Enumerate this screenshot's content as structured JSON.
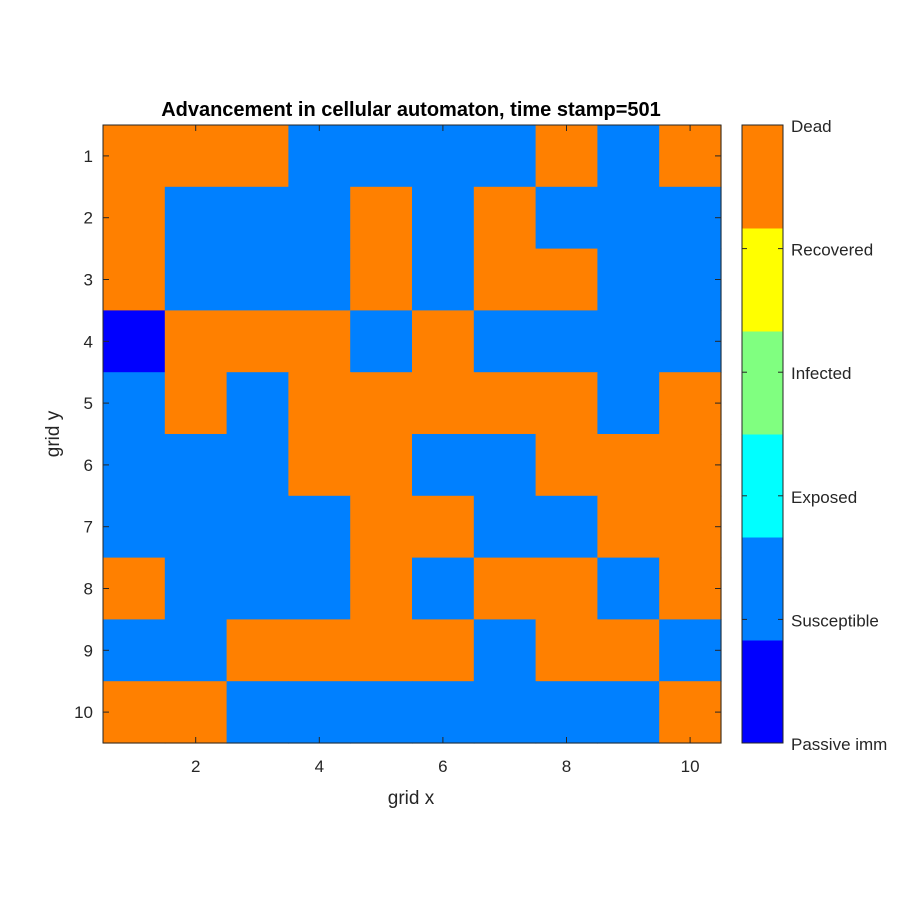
{
  "chart_data": {
    "type": "heatmap",
    "title": "Advancement in cellular automaton, time stamp=501",
    "xlabel": "grid x",
    "ylabel": "grid y",
    "x_ticks": [
      2,
      4,
      6,
      8,
      10
    ],
    "y_ticks": [
      1,
      2,
      3,
      4,
      5,
      6,
      7,
      8,
      9,
      10
    ],
    "xlim": [
      0.5,
      10.5
    ],
    "ylim": [
      0.5,
      10.5
    ],
    "y_axis_direction": "top-to-bottom",
    "states": [
      {
        "value": 0,
        "label": "Passive imm",
        "color": "#0000ff"
      },
      {
        "value": 1,
        "label": "Susceptible",
        "color": "#0080ff"
      },
      {
        "value": 2,
        "label": "Exposed",
        "color": "#00ffff"
      },
      {
        "value": 3,
        "label": "Infected",
        "color": "#80ff80"
      },
      {
        "value": 4,
        "label": "Recovered",
        "color": "#ffff00"
      },
      {
        "value": 5,
        "label": "Dead",
        "color": "#ff8000"
      }
    ],
    "grid": [
      [
        5,
        5,
        5,
        1,
        1,
        1,
        1,
        5,
        1,
        5
      ],
      [
        5,
        1,
        1,
        1,
        5,
        1,
        5,
        1,
        1,
        1
      ],
      [
        5,
        1,
        1,
        1,
        5,
        1,
        5,
        5,
        1,
        1
      ],
      [
        0,
        5,
        5,
        5,
        1,
        5,
        1,
        1,
        1,
        1
      ],
      [
        1,
        5,
        1,
        5,
        5,
        5,
        5,
        5,
        1,
        5
      ],
      [
        1,
        1,
        1,
        5,
        5,
        1,
        1,
        5,
        5,
        5
      ],
      [
        1,
        1,
        1,
        1,
        5,
        5,
        1,
        1,
        5,
        5
      ],
      [
        5,
        1,
        1,
        1,
        5,
        1,
        5,
        5,
        1,
        5
      ],
      [
        1,
        1,
        5,
        5,
        5,
        5,
        1,
        5,
        5,
        1
      ],
      [
        5,
        5,
        1,
        1,
        1,
        1,
        1,
        1,
        1,
        5
      ]
    ]
  }
}
